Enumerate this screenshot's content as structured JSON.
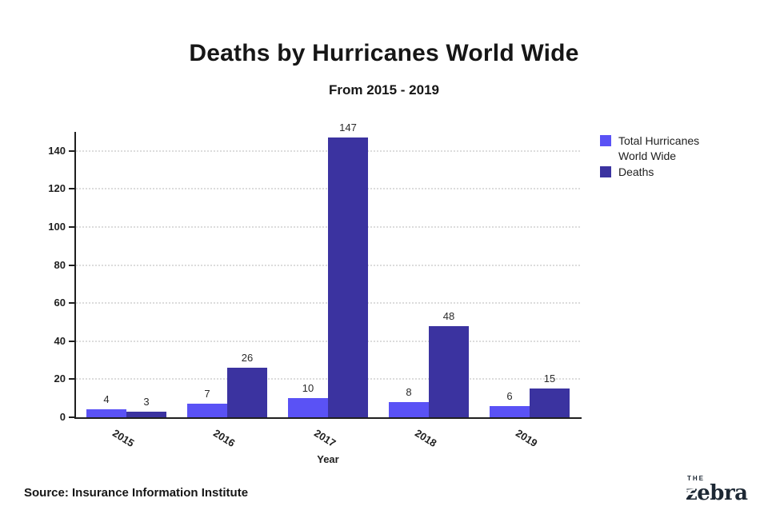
{
  "title": "Deaths by Hurricanes World Wide",
  "subtitle": "From 2015 - 2019",
  "source": "Source: Insurance Information Institute",
  "logo": {
    "the": "THE",
    "zebra_z": "z",
    "zebra_rest": "ebra"
  },
  "legend": {
    "hurricanes_line1": "Total Hurricanes",
    "hurricanes_line2": "World Wide",
    "deaths": "Deaths"
  },
  "chart_data": {
    "type": "bar",
    "title": "Deaths by Hurricanes World Wide",
    "subtitle": "From 2015 - 2019",
    "categories": [
      "2015",
      "2016",
      "2017",
      "2018",
      "2019"
    ],
    "series": [
      {
        "name": "Total Hurricanes World Wide",
        "color": "#5A52F5",
        "values": [
          4,
          7,
          10,
          8,
          6
        ]
      },
      {
        "name": "Deaths",
        "color": "#3B33A0",
        "values": [
          3,
          26,
          147,
          48,
          15
        ]
      }
    ],
    "xlabel": "Year",
    "ylabel": "",
    "ylim": [
      0,
      150
    ],
    "yticks": [
      0,
      20,
      40,
      60,
      80,
      100,
      120,
      140
    ],
    "grid": "horizontal-dotted",
    "legend_position": "right",
    "axis_color": "#1f1f1f",
    "gridline_color": "#dcdcdc"
  }
}
